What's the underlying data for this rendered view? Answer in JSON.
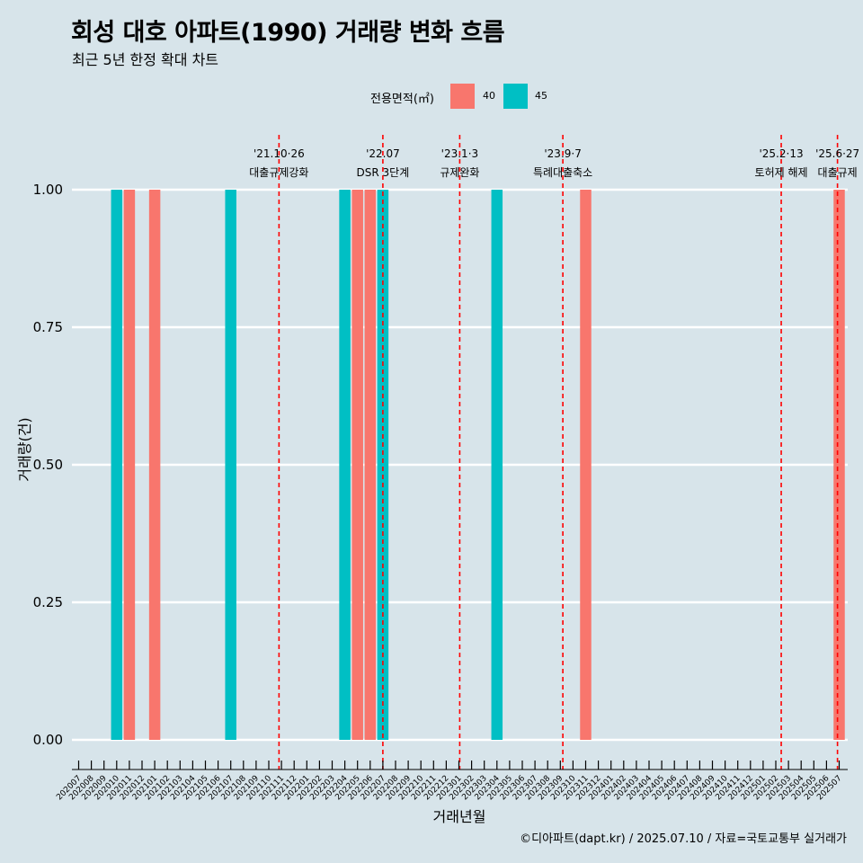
{
  "colors": {
    "background": "#d7e4ea",
    "series_40": "#f8766d",
    "series_45": "#00bfc4",
    "event_line": "#ff0000",
    "grid": "#ffffff"
  },
  "chart_data": {
    "type": "bar",
    "title": "회성 대호 아파트(1990) 거래량 변화 흐름",
    "subtitle": "최근 5년 한정 확대 차트",
    "xlabel": "거래년월",
    "ylabel": "거래량(건)",
    "ylim": [
      0,
      1
    ],
    "yticks": [
      "0.00",
      "0.25",
      "0.50",
      "0.75",
      "1.00"
    ],
    "legend": {
      "title": "전용면적(㎡)",
      "position": "top"
    },
    "categories": [
      "202007",
      "202008",
      "202009",
      "202010",
      "202011",
      "202012",
      "202101",
      "202102",
      "202103",
      "202104",
      "202105",
      "202106",
      "202107",
      "202108",
      "202109",
      "202110",
      "202111",
      "202112",
      "202201",
      "202202",
      "202203",
      "202204",
      "202205",
      "202206",
      "202207",
      "202208",
      "202209",
      "202210",
      "202211",
      "202212",
      "202301",
      "202302",
      "202303",
      "202304",
      "202305",
      "202306",
      "202307",
      "202308",
      "202309",
      "202310",
      "202311",
      "202312",
      "202401",
      "202402",
      "202403",
      "202404",
      "202405",
      "202406",
      "202407",
      "202408",
      "202409",
      "202410",
      "202411",
      "202412",
      "202501",
      "202502",
      "202503",
      "202504",
      "202505",
      "202506",
      "202507"
    ],
    "series": [
      {
        "name": "40",
        "color": "#f8766d",
        "points": [
          {
            "x": "202011",
            "y": 1
          },
          {
            "x": "202101",
            "y": 1
          },
          {
            "x": "202205",
            "y": 1
          },
          {
            "x": "202206",
            "y": 1
          },
          {
            "x": "202311",
            "y": 1
          },
          {
            "x": "202507",
            "y": 1
          }
        ]
      },
      {
        "name": "45",
        "color": "#00bfc4",
        "points": [
          {
            "x": "202010",
            "y": 1
          },
          {
            "x": "202107",
            "y": 1
          },
          {
            "x": "202204",
            "y": 1
          },
          {
            "x": "202207",
            "y": 1
          },
          {
            "x": "202304",
            "y": 1
          }
        ]
      }
    ],
    "events": [
      {
        "x": "2021-10-26",
        "date": "'21.10·26",
        "label": "대출규제강화"
      },
      {
        "x": "2022-07-01",
        "date": "'22.07",
        "label": "DSR 3단계"
      },
      {
        "x": "2023-01-03",
        "date": "'23.1·3",
        "label": "규제완화"
      },
      {
        "x": "2023-09-07",
        "date": "'23.9·7",
        "label": "특례대출축소"
      },
      {
        "x": "2025-02-13",
        "date": "'25.2·13",
        "label": "토허제 해제"
      },
      {
        "x": "2025-06-27",
        "date": "'25.6·27",
        "label": "대출규제"
      }
    ]
  },
  "caption": "©디아파트(dapt.kr) / 2025.07.10 / 자료=국토교통부 실거래가"
}
